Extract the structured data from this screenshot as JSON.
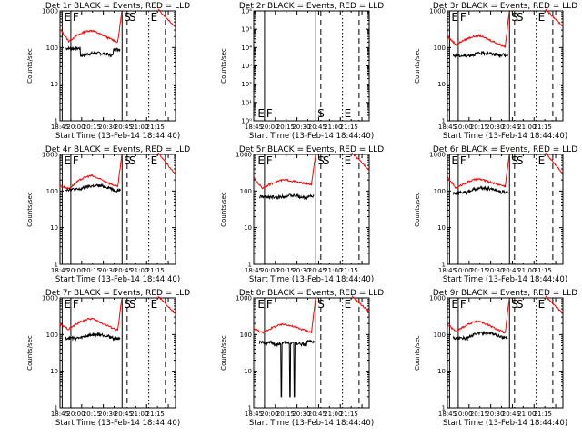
{
  "figure": {
    "xlabel": "Start Time (13-Feb-14 18:44:40)",
    "ylabel": "Counts/sec",
    "x_tick_labels": [
      "18:45",
      "20:00",
      "20:15",
      "20:30",
      "20:45",
      "21:00",
      "21:15"
    ],
    "colors": {
      "events": "#000000",
      "lld": "#ff0000"
    },
    "line_styles": {
      "E": "solid",
      "F": "solid",
      "S": "dashed",
      "E_end": "dotted",
      "last": "dashed"
    }
  },
  "chart_data": [
    {
      "type": "line",
      "title": "Det 1r BLACK = Events, RED = LLD",
      "x_unit": "minutes after 18:44:40",
      "xlim": [
        0,
        160
      ],
      "ylim": [
        1,
        1000
      ],
      "yscale": "log",
      "y_tick_labels": [
        "1",
        "10",
        "100",
        "1000"
      ],
      "events_shape": "arc",
      "lld_gap": [
        60,
        97
      ],
      "events": {
        "level": 85,
        "seg1_level": 95,
        "bump_level": 70,
        "bump_x": [
          28,
          74
        ]
      },
      "lld": {
        "start": 320,
        "min": 150,
        "arc": 290,
        "pre_min": 140,
        "rise": 1100,
        "end": 360
      },
      "markers": [
        {
          "label": "E",
          "x": 3,
          "style": "solid"
        },
        {
          "label": "F",
          "x": 15,
          "style": "solid"
        },
        {
          "label": "S",
          "x": 86,
          "style": "solid"
        },
        {
          "label": "S",
          "x": 93,
          "style": "dashed"
        },
        {
          "label": "E",
          "x": 123,
          "style": "dotted"
        },
        {
          "label": "",
          "x": 146,
          "style": "dashed"
        }
      ]
    },
    {
      "type": "line",
      "title": "Det 2r BLACK = Events, RED = LLD",
      "x_unit": "minutes after 18:44:40",
      "xlim": [
        0,
        160
      ],
      "ylim": [
        1,
        1000000
      ],
      "yscale": "log",
      "y_tick_labels": [
        "10⁰",
        "10¹",
        "10²",
        "10³",
        "10⁴",
        "10⁵",
        "10⁶"
      ],
      "events_shape": "none",
      "markers": [
        {
          "label": "E",
          "x": 3,
          "style": "solid"
        },
        {
          "label": "F",
          "x": 15,
          "style": "solid"
        },
        {
          "label": "S",
          "x": 86,
          "style": "solid"
        },
        {
          "label": "",
          "x": 93,
          "style": "dashed"
        },
        {
          "label": "E",
          "x": 123,
          "style": "dotted"
        },
        {
          "label": "",
          "x": 146,
          "style": "dashed"
        }
      ]
    },
    {
      "type": "line",
      "title": "Det 3r BLACK = Events, RED = LLD",
      "x_unit": "minutes after 18:44:40",
      "xlim": [
        0,
        160
      ],
      "ylim": [
        1,
        1000
      ],
      "yscale": "log",
      "y_tick_labels": [
        "1",
        "10",
        "100",
        "1000"
      ],
      "events_shape": "arc",
      "lld_gap": [
        60,
        97
      ],
      "events": {
        "level": 60,
        "seg1_level": 60,
        "bump_level": 70,
        "bump_x": [
          28,
          74
        ]
      },
      "lld": {
        "start": 200,
        "min": 120,
        "arc": 210,
        "pre_min": 105,
        "rise": 1100,
        "end": 380
      },
      "markers": [
        {
          "label": "E",
          "x": 3,
          "style": "solid"
        },
        {
          "label": "F",
          "x": 15,
          "style": "solid"
        },
        {
          "label": "S",
          "x": 86,
          "style": "solid"
        },
        {
          "label": "S",
          "x": 93,
          "style": "dashed"
        },
        {
          "label": "E",
          "x": 123,
          "style": "dotted"
        },
        {
          "label": "",
          "x": 146,
          "style": "dashed"
        }
      ]
    },
    {
      "type": "line",
      "title": "Det 4r BLACK = Events, RED = LLD",
      "x_unit": "minutes after 18:44:40",
      "xlim": [
        0,
        160
      ],
      "ylim": [
        1,
        1000
      ],
      "yscale": "log",
      "y_tick_labels": [
        "1",
        "10",
        "100",
        "1000"
      ],
      "events_shape": "step",
      "lld_gap": [
        60,
        97
      ],
      "events": {
        "level": 100,
        "seg1_level": 110,
        "bump_level": 140,
        "bump_x": [
          28,
          74
        ]
      },
      "lld": {
        "start": 140,
        "min": 115,
        "arc": 260,
        "pre_min": 130,
        "rise": 1100,
        "end": 280
      },
      "markers": [
        {
          "label": "E",
          "x": 3,
          "style": "solid"
        },
        {
          "label": "F",
          "x": 15,
          "style": "solid"
        },
        {
          "label": "S",
          "x": 86,
          "style": "solid"
        },
        {
          "label": "S",
          "x": 93,
          "style": "dashed"
        },
        {
          "label": "E",
          "x": 123,
          "style": "dotted"
        },
        {
          "label": "",
          "x": 146,
          "style": "dashed"
        }
      ]
    },
    {
      "type": "line",
      "title": "Det 5r BLACK = Events, RED = LLD",
      "x_unit": "minutes after 18:44:40",
      "xlim": [
        0,
        160
      ],
      "ylim": [
        1,
        1000
      ],
      "yscale": "log",
      "y_tick_labels": [
        "1",
        "10",
        "100",
        "1000"
      ],
      "events_shape": "arc",
      "lld_gap": [
        60,
        97
      ],
      "events": {
        "level": 70,
        "seg1_level": 70,
        "bump_level": 75,
        "bump_x": [
          28,
          74
        ]
      },
      "lld": {
        "start": 230,
        "min": 120,
        "arc": 200,
        "pre_min": 150,
        "rise": 1100,
        "end": 380
      },
      "markers": [
        {
          "label": "E",
          "x": 3,
          "style": "solid"
        },
        {
          "label": "F",
          "x": 15,
          "style": "solid"
        },
        {
          "label": "S",
          "x": 86,
          "style": "solid"
        },
        {
          "label": "S",
          "x": 93,
          "style": "dashed"
        },
        {
          "label": "E",
          "x": 123,
          "style": "dotted"
        },
        {
          "label": "",
          "x": 146,
          "style": "dashed"
        }
      ]
    },
    {
      "type": "line",
      "title": "Det 6r BLACK = Events, RED = LLD",
      "x_unit": "minutes after 18:44:40",
      "xlim": [
        0,
        160
      ],
      "ylim": [
        1,
        1000
      ],
      "yscale": "log",
      "y_tick_labels": [
        "1",
        "10",
        "100",
        "1000"
      ],
      "events_shape": "step",
      "lld_gap": [
        60,
        97
      ],
      "events": {
        "level": 90,
        "seg1_level": 90,
        "bump_level": 120,
        "bump_x": [
          28,
          74
        ]
      },
      "lld": {
        "start": 230,
        "min": 120,
        "arc": 210,
        "pre_min": 135,
        "rise": 1100,
        "end": 300
      },
      "markers": [
        {
          "label": "E",
          "x": 3,
          "style": "solid"
        },
        {
          "label": "F",
          "x": 15,
          "style": "solid"
        },
        {
          "label": "S",
          "x": 86,
          "style": "solid"
        },
        {
          "label": "S",
          "x": 93,
          "style": "dashed"
        },
        {
          "label": "E",
          "x": 123,
          "style": "dotted"
        },
        {
          "label": "",
          "x": 146,
          "style": "dashed"
        }
      ]
    },
    {
      "type": "line",
      "title": "Det 7r BLACK = Events, RED = LLD",
      "x_unit": "minutes after 18:44:40",
      "xlim": [
        0,
        160
      ],
      "ylim": [
        1,
        1000
      ],
      "yscale": "log",
      "y_tick_labels": [
        "1",
        "10",
        "100",
        "1000"
      ],
      "events_shape": "step",
      "lld_gap": [
        60,
        97
      ],
      "events": {
        "level": 75,
        "seg1_level": 80,
        "bump_level": 100,
        "bump_x": [
          28,
          74
        ]
      },
      "lld": {
        "start": 190,
        "min": 140,
        "arc": 270,
        "pre_min": 130,
        "rise": 1100,
        "end": 360
      },
      "markers": [
        {
          "label": "E",
          "x": 3,
          "style": "solid"
        },
        {
          "label": "F",
          "x": 15,
          "style": "solid"
        },
        {
          "label": "S",
          "x": 86,
          "style": "solid"
        },
        {
          "label": "S",
          "x": 93,
          "style": "dashed"
        },
        {
          "label": "E",
          "x": 123,
          "style": "dotted"
        },
        {
          "label": "",
          "x": 146,
          "style": "dashed"
        }
      ]
    },
    {
      "type": "line",
      "title": "Det 8r BLACK = Events, RED = LLD",
      "x_unit": "minutes after 18:44:40",
      "xlim": [
        0,
        160
      ],
      "ylim": [
        1,
        1000
      ],
      "yscale": "log",
      "y_tick_labels": [
        "1",
        "10",
        "100",
        "1000"
      ],
      "events_shape": "drop",
      "lld_gap": [
        60,
        97
      ],
      "events": {
        "level": 60,
        "seg1_level": 60,
        "bump_level": 60,
        "bump_x": [
          28,
          74
        ],
        "low": 2
      },
      "lld": {
        "start": 150,
        "min": 110,
        "arc": 190,
        "pre_min": 115,
        "rise": 1100,
        "end": 420
      },
      "markers": [
        {
          "label": "E",
          "x": 3,
          "style": "solid"
        },
        {
          "label": "F",
          "x": 15,
          "style": "solid"
        },
        {
          "label": "S",
          "x": 86,
          "style": "solid"
        },
        {
          "label": "",
          "x": 93,
          "style": "dashed"
        },
        {
          "label": "E",
          "x": 123,
          "style": "dotted"
        },
        {
          "label": "",
          "x": 146,
          "style": "dashed"
        }
      ]
    },
    {
      "type": "line",
      "title": "Det 9r BLACK = Events, RED = LLD",
      "x_unit": "minutes after 18:44:40",
      "xlim": [
        0,
        160
      ],
      "ylim": [
        1,
        1000
      ],
      "yscale": "log",
      "y_tick_labels": [
        "1",
        "10",
        "100",
        "1000"
      ],
      "events_shape": "step",
      "lld_gap": [
        60,
        97
      ],
      "events": {
        "level": 80,
        "seg1_level": 80,
        "bump_level": 110,
        "bump_x": [
          28,
          74
        ]
      },
      "lld": {
        "start": 190,
        "min": 120,
        "arc": 230,
        "pre_min": 110,
        "rise": 1100,
        "end": 370
      },
      "markers": [
        {
          "label": "E",
          "x": 3,
          "style": "solid"
        },
        {
          "label": "F",
          "x": 15,
          "style": "solid"
        },
        {
          "label": "S",
          "x": 86,
          "style": "solid"
        },
        {
          "label": "S",
          "x": 93,
          "style": "dashed"
        },
        {
          "label": "E",
          "x": 123,
          "style": "dotted"
        },
        {
          "label": "",
          "x": 146,
          "style": "dashed"
        }
      ]
    }
  ]
}
